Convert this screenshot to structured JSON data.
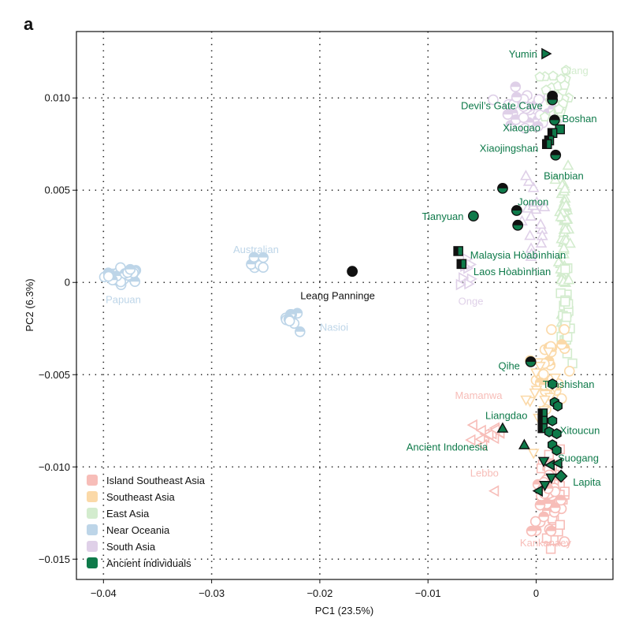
{
  "chart_data": {
    "type": "scatter",
    "panel_label": "a",
    "xlabel": "PC1 (23.5%)",
    "ylabel": "PC2 (6.3%)",
    "xlim": [
      -0.0425,
      0.0071
    ],
    "ylim": [
      -0.0161,
      0.0136
    ],
    "xticks": [
      -0.04,
      -0.03,
      -0.02,
      -0.01,
      0
    ],
    "xtick_labels": [
      "−0.04",
      "−0.03",
      "−0.02",
      "−0.01",
      "0"
    ],
    "yticks": [
      0.01,
      0.005,
      0,
      -0.005,
      -0.01,
      -0.015
    ],
    "ytick_labels": [
      "0.010",
      "0.005",
      "0",
      "−0.005",
      "−0.010",
      "−0.015"
    ],
    "grid": "dotted",
    "legend_position": "bottom-left",
    "groups": [
      {
        "key": "isea",
        "name": "Island Southeast Asia",
        "color": "#f7bdb8"
      },
      {
        "key": "sea",
        "name": "Southeast Asia",
        "color": "#fbd9a8"
      },
      {
        "key": "ea",
        "name": "East Asia",
        "color": "#d3ecce"
      },
      {
        "key": "no",
        "name": "Near Oceania",
        "color": "#bdd5e8"
      },
      {
        "key": "sa",
        "name": "South Asia",
        "color": "#dfd0e8"
      },
      {
        "key": "anc",
        "name": "Ancient individuals",
        "color": "#0e7a4a"
      }
    ],
    "modern_clusters": [
      {
        "group": "no",
        "shape": "circle",
        "cx": -0.0381,
        "cy": 0.0004,
        "sx": 0.0011,
        "sy": 0.00025,
        "n": 32
      },
      {
        "group": "no",
        "shape": "circle",
        "cx": -0.0257,
        "cy": 0.001,
        "sx": 0.0004,
        "sy": 0.0003,
        "n": 9
      },
      {
        "group": "no",
        "shape": "circle",
        "cx": -0.0226,
        "cy": -0.0019,
        "sx": 0.0004,
        "sy": 0.0002,
        "n": 10
      },
      {
        "group": "no",
        "shape": "circle",
        "cx": -0.0218,
        "cy": -0.0027,
        "sx": 0.0001,
        "sy": 0.0001,
        "n": 1
      },
      {
        "group": "sa",
        "shape": "circle",
        "cx": -0.001,
        "cy": 0.0092,
        "sx": 0.0018,
        "sy": 0.0007,
        "n": 30
      },
      {
        "group": "sa",
        "shape": "triangle-up",
        "cx": -0.0002,
        "cy": 0.003,
        "sx": 0.0008,
        "sy": 0.0016,
        "n": 18
      },
      {
        "group": "sa",
        "shape": "triangle-right",
        "cx": -0.0064,
        "cy": 0.0006,
        "sx": 0.0004,
        "sy": 0.0006,
        "n": 8
      },
      {
        "group": "ea",
        "shape": "pentagon",
        "cx": 0.0018,
        "cy": 0.0102,
        "sx": 0.0008,
        "sy": 0.0011,
        "n": 30
      },
      {
        "group": "ea",
        "shape": "triangle-up",
        "cx": 0.0026,
        "cy": 0.003,
        "sx": 0.0003,
        "sy": 0.0028,
        "n": 55
      },
      {
        "group": "ea",
        "shape": "square",
        "cx": 0.0027,
        "cy": -0.002,
        "sx": 0.0003,
        "sy": 0.0015,
        "n": 25
      },
      {
        "group": "sea",
        "shape": "circle",
        "cx": 0.0013,
        "cy": -0.0045,
        "sx": 0.0008,
        "sy": 0.0014,
        "n": 30
      },
      {
        "group": "sea",
        "shape": "triangle-down",
        "cx": 0.0005,
        "cy": -0.006,
        "sx": 0.0009,
        "sy": 0.0012,
        "n": 15
      },
      {
        "group": "isea",
        "shape": "square",
        "cx": 0.0016,
        "cy": -0.0115,
        "sx": 0.0008,
        "sy": 0.0014,
        "n": 40
      },
      {
        "group": "isea",
        "shape": "circle",
        "cx": 0.001,
        "cy": -0.012,
        "sx": 0.0009,
        "sy": 0.001,
        "n": 35
      },
      {
        "group": "isea",
        "shape": "triangle-left",
        "cx": -0.0045,
        "cy": -0.0082,
        "sx": 0.0012,
        "sy": 0.0007,
        "n": 16
      },
      {
        "group": "isea",
        "shape": "triangle-left",
        "cx": -0.004,
        "cy": -0.0112,
        "sx": 0.0002,
        "sy": 0.0002,
        "n": 1
      }
    ],
    "ancient_points": [
      {
        "label": "Yumin",
        "shape": "triangle-right",
        "x": 0.0009,
        "y": 0.0124,
        "half": false
      },
      {
        "label": "Devil's Gate Cave",
        "shape": "circle",
        "x": 0.0015,
        "y": 0.0101,
        "half": true
      },
      {
        "label": "Devil's Gate Cave",
        "shape": "circle",
        "x": 0.0015,
        "y": 0.0099,
        "half": true
      },
      {
        "label": "Boshan",
        "shape": "circle",
        "x": 0.0017,
        "y": 0.0088,
        "half": true
      },
      {
        "label": "Boshan",
        "shape": "square",
        "x": 0.0022,
        "y": 0.0083,
        "half": false
      },
      {
        "label": "Xiaogao",
        "shape": "square",
        "x": 0.0015,
        "y": 0.0081,
        "half": true
      },
      {
        "label": "Xiaojingshan",
        "shape": "square",
        "x": 0.0012,
        "y": 0.0077,
        "half": true
      },
      {
        "label": "Xiaojingshan",
        "shape": "square",
        "x": 0.001,
        "y": 0.0075,
        "half": true
      },
      {
        "label": "Bianbian",
        "shape": "circle",
        "x": 0.0018,
        "y": 0.0069,
        "half": true
      },
      {
        "label": "Jomon",
        "shape": "circle",
        "x": -0.0031,
        "y": 0.0051,
        "half": true
      },
      {
        "label": "Jomon",
        "shape": "circle",
        "x": -0.0018,
        "y": 0.0039,
        "half": true
      },
      {
        "label": "Jomon",
        "shape": "circle",
        "x": -0.0017,
        "y": 0.0031,
        "half": true
      },
      {
        "label": "Tianyuan",
        "shape": "circle",
        "x": -0.0058,
        "y": 0.0036,
        "half": false
      },
      {
        "label": "Malaysia Hòabìnhian",
        "shape": "square",
        "x": -0.0072,
        "y": 0.0017,
        "half": true
      },
      {
        "label": "Laos Hòabìnhian",
        "shape": "square",
        "x": -0.0069,
        "y": 0.001,
        "half": true
      },
      {
        "label": "Leang Panninge",
        "shape": "circle",
        "x": -0.017,
        "y": 0.0006,
        "half": false,
        "black": true
      },
      {
        "label": "Qihe",
        "shape": "circle",
        "x": -0.0005,
        "y": -0.0043,
        "half": true
      },
      {
        "label": "Tanshishan",
        "shape": "hexagon",
        "x": 0.0015,
        "y": -0.0055,
        "half": false
      },
      {
        "label": "Tanshishan",
        "shape": "hexagon",
        "x": 0.0017,
        "y": -0.0065,
        "half": false
      },
      {
        "label": "Tanshishan",
        "shape": "hexagon",
        "x": 0.002,
        "y": -0.0067,
        "half": false
      },
      {
        "label": "Liangdao",
        "shape": "square",
        "x": 0.0006,
        "y": -0.0071,
        "half": true
      },
      {
        "label": "Liangdao",
        "shape": "square",
        "x": 0.0006,
        "y": -0.0075,
        "half": true
      },
      {
        "label": "Liangdao",
        "shape": "square",
        "x": 0.0006,
        "y": -0.0079,
        "half": true
      },
      {
        "label": "Xitoucun",
        "shape": "hexagon",
        "x": 0.0015,
        "y": -0.0075,
        "half": false
      },
      {
        "label": "Xitoucun",
        "shape": "hexagon",
        "x": 0.0012,
        "y": -0.0081,
        "half": false
      },
      {
        "label": "Xitoucun",
        "shape": "hexagon",
        "x": 0.0019,
        "y": -0.0082,
        "half": false
      },
      {
        "label": "Suogang",
        "shape": "hexagon",
        "x": 0.0015,
        "y": -0.0088,
        "half": false
      },
      {
        "label": "Suogang",
        "shape": "hexagon",
        "x": 0.0019,
        "y": -0.0091,
        "half": false
      },
      {
        "label": "Ancient Indonesia",
        "shape": "triangle-up",
        "x": -0.0031,
        "y": -0.0079,
        "half": false
      },
      {
        "label": "Ancient Indonesia",
        "shape": "triangle-up",
        "x": -0.0011,
        "y": -0.0088,
        "half": false
      },
      {
        "label": "Suogang",
        "shape": "triangle-down",
        "x": 0.0007,
        "y": -0.0097,
        "half": false
      },
      {
        "label": "Suogang",
        "shape": "triangle-left",
        "x": 0.0013,
        "y": -0.0099,
        "half": false
      },
      {
        "label": "Suogang",
        "shape": "triangle-left",
        "x": 0.002,
        "y": -0.0098,
        "half": false
      },
      {
        "label": "Lapita",
        "shape": "diamond",
        "x": 0.0023,
        "y": -0.0105,
        "half": false
      },
      {
        "label": "Lapita",
        "shape": "triangle-down",
        "x": 0.0014,
        "y": -0.0106,
        "half": false
      },
      {
        "label": "Lapita",
        "shape": "triangle-down",
        "x": 0.0008,
        "y": -0.011,
        "half": false
      },
      {
        "label": "Lapita",
        "shape": "triangle-left",
        "x": 0.0002,
        "y": -0.0113,
        "half": false
      }
    ],
    "annotations": [
      {
        "text": "Yumin",
        "x": 0.0001,
        "y": 0.0124,
        "anchor": "end",
        "group": "anc"
      },
      {
        "text": "Qiang",
        "x": 0.0023,
        "y": 0.0115,
        "anchor": "start",
        "group": "ea"
      },
      {
        "text": "Devil’s Gate Cave",
        "x": 0.0006,
        "y": 0.0096,
        "anchor": "end",
        "group": "anc"
      },
      {
        "text": "Boshan",
        "x": 0.0024,
        "y": 0.0089,
        "anchor": "start",
        "group": "anc"
      },
      {
        "text": "Xiaogao",
        "x": 0.0004,
        "y": 0.0084,
        "anchor": "end",
        "group": "anc"
      },
      {
        "text": "Xiaojingshan",
        "x": 0.0002,
        "y": 0.0073,
        "anchor": "end",
        "group": "anc"
      },
      {
        "text": "Bianbian",
        "x": 0.0007,
        "y": 0.0058,
        "anchor": "start",
        "group": "anc"
      },
      {
        "text": "Jomon",
        "x": -0.0017,
        "y": 0.0044,
        "anchor": "start",
        "group": "anc"
      },
      {
        "text": "Tianyuan",
        "x": -0.0067,
        "y": 0.0036,
        "anchor": "end",
        "group": "anc"
      },
      {
        "text": "Malaysia Hòabìnhian",
        "x": -0.0061,
        "y": 0.0015,
        "anchor": "start",
        "group": "anc"
      },
      {
        "text": "Laos Hòabìnhian",
        "x": -0.0058,
        "y": 0.0006,
        "anchor": "start",
        "group": "anc"
      },
      {
        "text": "Australian",
        "x": -0.0259,
        "y": 0.0018,
        "anchor": "middle",
        "group": "no"
      },
      {
        "text": "Papuan",
        "x": -0.0398,
        "y": -0.0009,
        "anchor": "start",
        "group": "no"
      },
      {
        "text": "Leang Panninge",
        "x": -0.0218,
        "y": -0.0007,
        "anchor": "start",
        "group": "black"
      },
      {
        "text": "Nasioi",
        "x": -0.02,
        "y": -0.0024,
        "anchor": "start",
        "group": "no"
      },
      {
        "text": "Onge",
        "x": -0.0072,
        "y": -0.001,
        "anchor": "start",
        "group": "sa"
      },
      {
        "text": "Qihe",
        "x": -0.0015,
        "y": -0.0045,
        "anchor": "end",
        "group": "anc"
      },
      {
        "text": "Tanshishan",
        "x": 0.0006,
        "y": -0.0055,
        "anchor": "start",
        "group": "anc"
      },
      {
        "text": "Mamanwa",
        "x": -0.0075,
        "y": -0.0061,
        "anchor": "start",
        "group": "isea"
      },
      {
        "text": "Liangdao",
        "x": -0.0047,
        "y": -0.0072,
        "anchor": "start",
        "group": "anc"
      },
      {
        "text": "Xitoucun",
        "x": 0.0022,
        "y": -0.008,
        "anchor": "start",
        "group": "anc"
      },
      {
        "text": "Ancient Indonesia",
        "x": -0.012,
        "y": -0.0089,
        "anchor": "start",
        "group": "anc"
      },
      {
        "text": "Suogang",
        "x": 0.002,
        "y": -0.0095,
        "anchor": "start",
        "group": "anc"
      },
      {
        "text": "Lebbo",
        "x": -0.0061,
        "y": -0.0103,
        "anchor": "start",
        "group": "isea"
      },
      {
        "text": "Lapita",
        "x": 0.0034,
        "y": -0.0108,
        "anchor": "start",
        "group": "anc"
      },
      {
        "text": "Kankanaey",
        "x": -0.0015,
        "y": -0.0141,
        "anchor": "start",
        "group": "isea"
      }
    ]
  }
}
